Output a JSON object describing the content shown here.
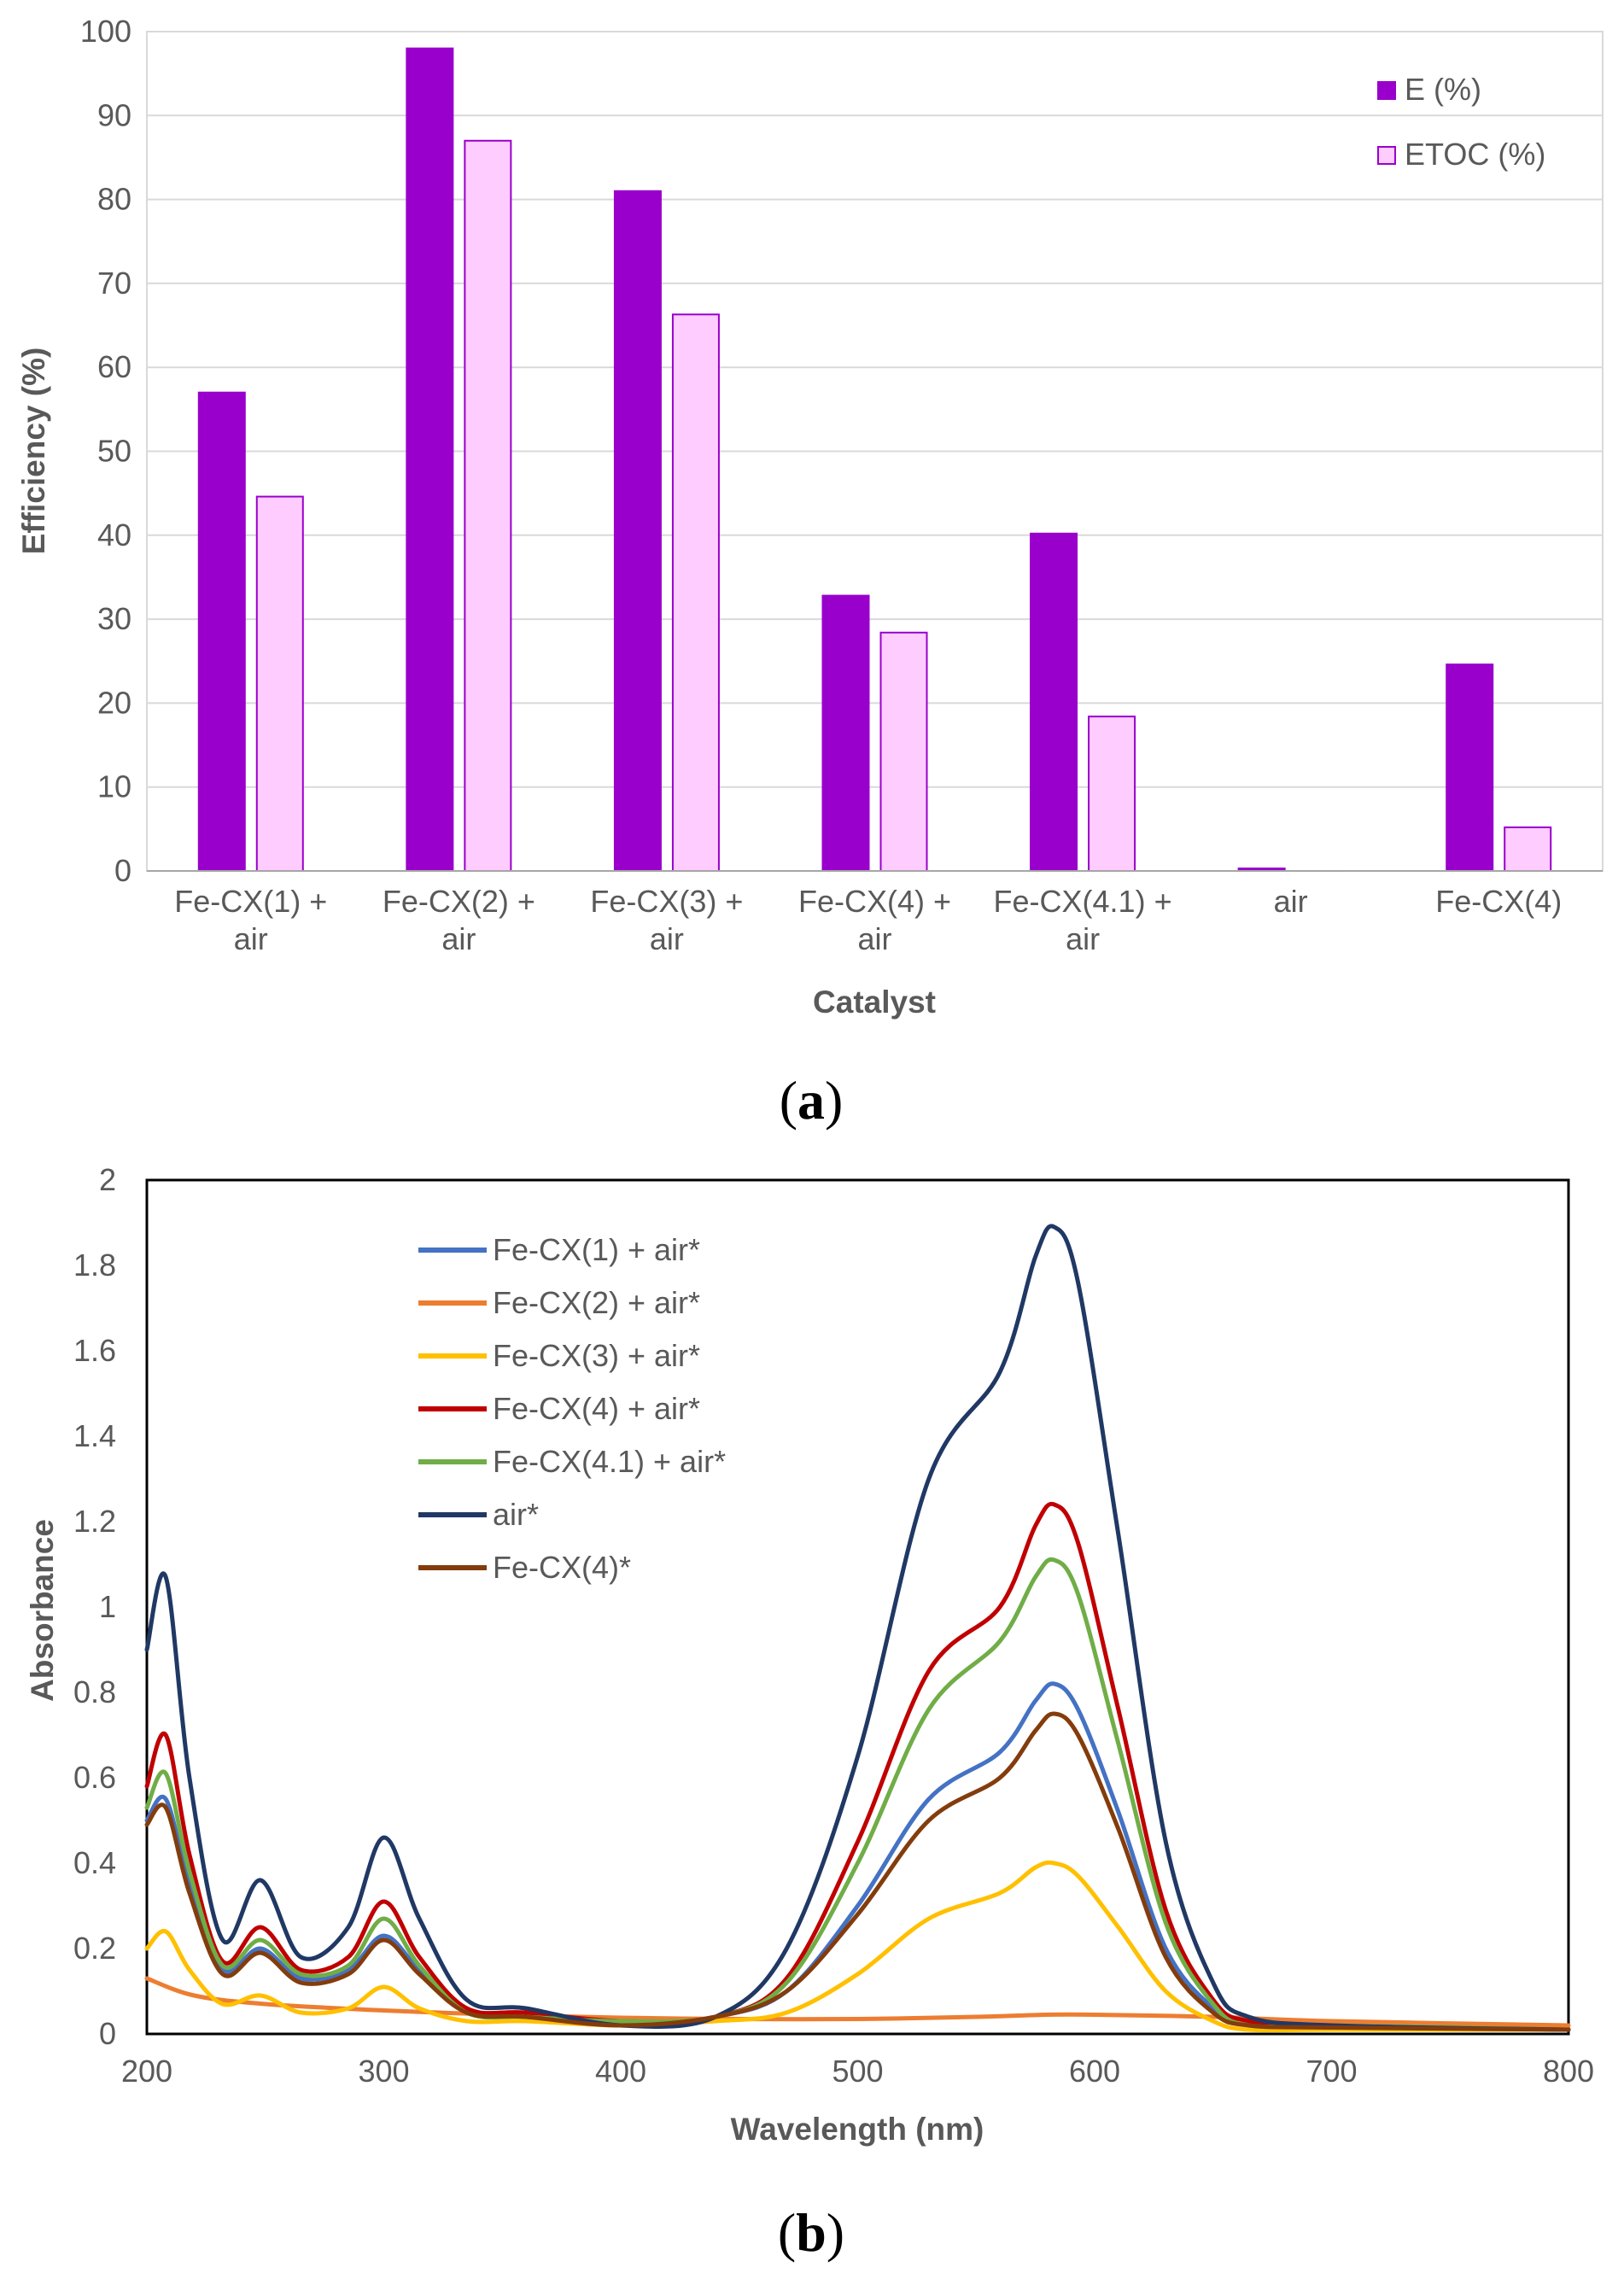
{
  "chart_data": [
    {
      "panel": "a",
      "type": "bar",
      "title": "",
      "xlabel": "Catalyst",
      "ylabel": "Efficiency (%)",
      "ylim": [
        0,
        100
      ],
      "yticks": [
        0,
        10,
        20,
        30,
        40,
        50,
        60,
        70,
        80,
        90,
        100
      ],
      "grid": true,
      "legend_position": "top-right",
      "categories": [
        [
          "Fe-CX(1) +",
          "air"
        ],
        [
          "Fe-CX(2) +",
          "air"
        ],
        [
          "Fe-CX(3) +",
          "air"
        ],
        [
          "Fe-CX(4) +",
          "air"
        ],
        [
          "Fe-CX(4.1) +",
          "air"
        ],
        [
          "air"
        ],
        [
          "Fe-CX(4)"
        ]
      ],
      "series": [
        {
          "name": "E (%)",
          "color": "#9900cc",
          "values": [
            57,
            98,
            81,
            32.8,
            40.2,
            0.3,
            24.6
          ]
        },
        {
          "name": "ETOC (%)",
          "color": "#ffccff",
          "stroke": "#9900cc",
          "values": [
            44.6,
            87,
            66.3,
            28.4,
            18.4,
            0,
            5.2
          ]
        }
      ]
    },
    {
      "panel": "b",
      "type": "line",
      "title": "",
      "xlabel": "Wavelength (nm)",
      "ylabel": "Absorbance",
      "xlim": [
        200,
        800
      ],
      "ylim": [
        0,
        2
      ],
      "xticks": [
        200,
        300,
        400,
        500,
        600,
        700,
        800
      ],
      "yticks": [
        0,
        0.2,
        0.4,
        0.6,
        0.8,
        1,
        1.2,
        1.4,
        1.6,
        1.8,
        2
      ],
      "grid": false,
      "legend_position": "top-left",
      "series": [
        {
          "name": "Fe-CX(1) + air*",
          "color": "#4472c4",
          "x": [
            200,
            208,
            218,
            232,
            248,
            265,
            285,
            300,
            315,
            335,
            360,
            400,
            440,
            470,
            500,
            530,
            560,
            575,
            583,
            593,
            610,
            630,
            650,
            665,
            700,
            800
          ],
          "y": [
            0.5,
            0.55,
            0.35,
            0.15,
            0.2,
            0.13,
            0.15,
            0.23,
            0.15,
            0.05,
            0.04,
            0.02,
            0.04,
            0.1,
            0.3,
            0.55,
            0.66,
            0.78,
            0.82,
            0.76,
            0.52,
            0.2,
            0.06,
            0.02,
            0.015,
            0.01
          ]
        },
        {
          "name": "Fe-CX(2) + air*",
          "color": "#ed7d31",
          "x": [
            200,
            220,
            250,
            300,
            350,
            400,
            450,
            500,
            550,
            580,
            600,
            650,
            700,
            800
          ],
          "y": [
            0.13,
            0.09,
            0.07,
            0.055,
            0.045,
            0.038,
            0.035,
            0.035,
            0.04,
            0.045,
            0.045,
            0.04,
            0.03,
            0.02
          ]
        },
        {
          "name": "Fe-CX(3) + air*",
          "color": "#ffc000",
          "x": [
            200,
            208,
            218,
            232,
            248,
            265,
            285,
            300,
            315,
            335,
            360,
            400,
            440,
            470,
            500,
            530,
            560,
            575,
            583,
            593,
            610,
            630,
            650,
            665,
            700,
            800
          ],
          "y": [
            0.2,
            0.24,
            0.15,
            0.07,
            0.09,
            0.05,
            0.06,
            0.11,
            0.06,
            0.03,
            0.03,
            0.02,
            0.03,
            0.05,
            0.14,
            0.27,
            0.33,
            0.39,
            0.4,
            0.37,
            0.25,
            0.1,
            0.03,
            0.01,
            0.01,
            0.01
          ]
        },
        {
          "name": "Fe-CX(4) + air*",
          "color": "#c00000",
          "x": [
            200,
            208,
            218,
            232,
            248,
            265,
            285,
            300,
            315,
            335,
            360,
            400,
            440,
            470,
            500,
            530,
            560,
            575,
            583,
            593,
            610,
            630,
            650,
            665,
            700,
            800
          ],
          "y": [
            0.58,
            0.7,
            0.42,
            0.17,
            0.25,
            0.15,
            0.18,
            0.31,
            0.18,
            0.06,
            0.05,
            0.03,
            0.04,
            0.13,
            0.45,
            0.85,
            1.0,
            1.19,
            1.24,
            1.15,
            0.76,
            0.29,
            0.08,
            0.03,
            0.02,
            0.01
          ]
        },
        {
          "name": "Fe-CX(4.1) + air*",
          "color": "#70ad47",
          "x": [
            200,
            208,
            218,
            232,
            248,
            265,
            285,
            300,
            315,
            335,
            360,
            400,
            440,
            470,
            500,
            530,
            560,
            575,
            583,
            593,
            610,
            630,
            650,
            665,
            700,
            800
          ],
          "y": [
            0.53,
            0.61,
            0.38,
            0.16,
            0.22,
            0.14,
            0.16,
            0.27,
            0.16,
            0.05,
            0.04,
            0.03,
            0.04,
            0.12,
            0.4,
            0.76,
            0.92,
            1.07,
            1.11,
            1.03,
            0.68,
            0.26,
            0.07,
            0.02,
            0.02,
            0.01
          ]
        },
        {
          "name": "air*",
          "color": "#203864",
          "x": [
            200,
            208,
            218,
            232,
            248,
            265,
            285,
            300,
            315,
            335,
            360,
            400,
            440,
            470,
            500,
            530,
            560,
            575,
            583,
            593,
            610,
            630,
            650,
            665,
            700,
            800
          ],
          "y": [
            0.9,
            1.07,
            0.6,
            0.22,
            0.36,
            0.18,
            0.25,
            0.46,
            0.27,
            0.08,
            0.06,
            0.02,
            0.04,
            0.2,
            0.65,
            1.3,
            1.55,
            1.82,
            1.89,
            1.76,
            1.17,
            0.45,
            0.12,
            0.04,
            0.02,
            0.01
          ]
        },
        {
          "name": "Fe-CX(4)*",
          "color": "#843c0c",
          "x": [
            200,
            208,
            218,
            232,
            248,
            265,
            285,
            300,
            315,
            335,
            360,
            400,
            440,
            470,
            500,
            530,
            560,
            575,
            583,
            593,
            610,
            630,
            650,
            665,
            700,
            800
          ],
          "y": [
            0.49,
            0.53,
            0.33,
            0.14,
            0.19,
            0.12,
            0.14,
            0.22,
            0.14,
            0.05,
            0.04,
            0.02,
            0.04,
            0.1,
            0.28,
            0.5,
            0.6,
            0.71,
            0.75,
            0.7,
            0.48,
            0.18,
            0.05,
            0.02,
            0.015,
            0.01
          ]
        }
      ]
    }
  ],
  "labels": {
    "panel_a": "a",
    "panel_b": "b"
  }
}
